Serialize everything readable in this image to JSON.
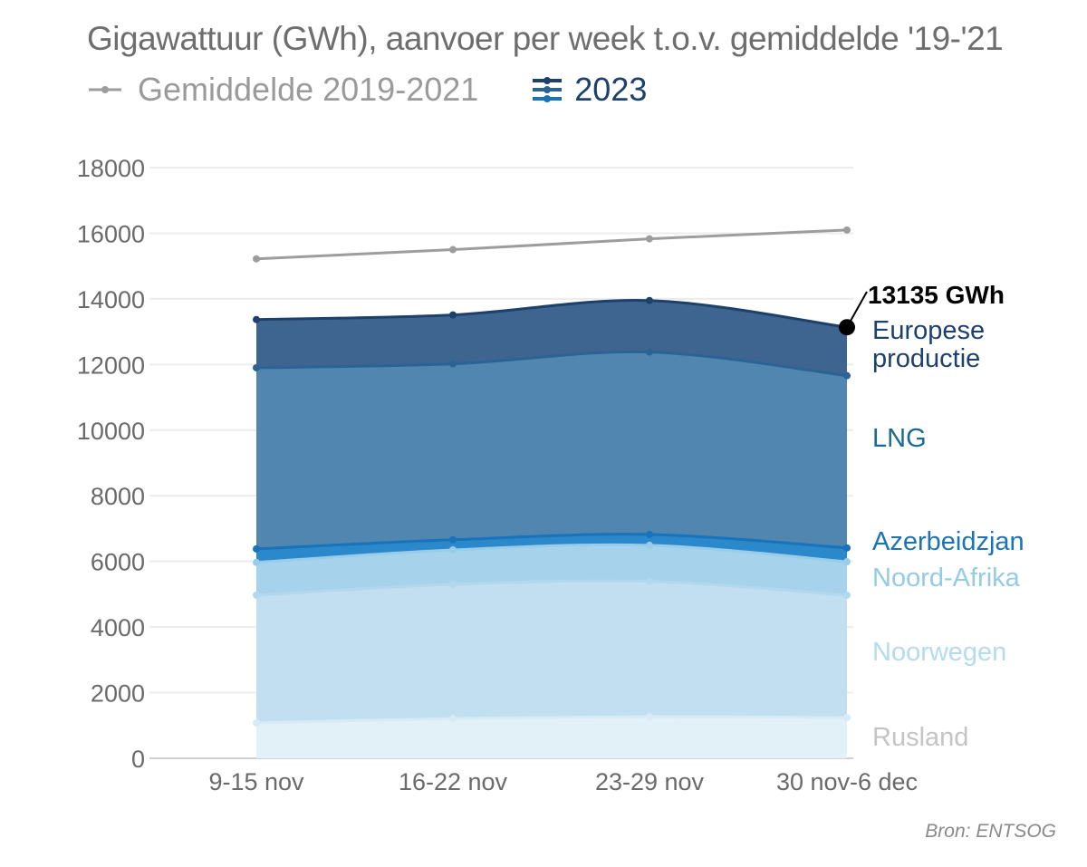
{
  "title": "Gigawattuur (GWh), aanvoer per week t.o.v. gemiddelde '19-'21",
  "legend": {
    "average": "Gemiddelde 2019-2021",
    "current": "2023"
  },
  "source": "Bron: ENTSOG",
  "chart_data": {
    "type": "area",
    "stacked": true,
    "title": "Gigawattuur (GWh), aanvoer per week t.o.v. gemiddelde '19-'21",
    "ylabel": "GWh",
    "ylim": [
      0,
      18000
    ],
    "yticks": [
      0,
      2000,
      4000,
      6000,
      8000,
      10000,
      12000,
      14000,
      16000,
      18000
    ],
    "categories": [
      "9-15 nov",
      "16-22 nov",
      "23-29 nov",
      "30 nov-6 dec"
    ],
    "grid": true,
    "series_cumulative_tops": [
      {
        "name": "Rusland",
        "values": [
          1080,
          1210,
          1270,
          1240
        ],
        "fill": "#e2f0f8",
        "line": "#d6ebf6",
        "label_color": "#c4c4c4"
      },
      {
        "name": "Noorwegen",
        "values": [
          4970,
          5300,
          5390,
          4970
        ],
        "fill": "#c1dff0",
        "line": "#b3d8ee",
        "label_color": "#b5dbef"
      },
      {
        "name": "Noord-Afrika",
        "values": [
          5970,
          6350,
          6490,
          5990
        ],
        "fill": "#a6d3eb",
        "line": "#98cce8",
        "label_color": "#94cbe5"
      },
      {
        "name": "Azerbeidzjan",
        "values": [
          6380,
          6660,
          6820,
          6410
        ],
        "fill": "#2b88ca",
        "line": "#1873bb",
        "label_color": "#1a74b6"
      },
      {
        "name": "LNG",
        "values": [
          11900,
          12020,
          12380,
          11660
        ],
        "fill": "#5186b0",
        "line": "#2b6394",
        "label_color": "#1a6a95"
      },
      {
        "name": "Europese productie",
        "values": [
          13370,
          13510,
          13950,
          13135
        ],
        "fill": "#3e6490",
        "line": "#1d416c",
        "label_color": "#1c416e"
      }
    ],
    "average": {
      "name": "Gemiddelde 2019-2021",
      "values": [
        15220,
        15500,
        15830,
        16100
      ],
      "color": "#9d9d9d"
    },
    "annotation": "13135 GWh"
  }
}
